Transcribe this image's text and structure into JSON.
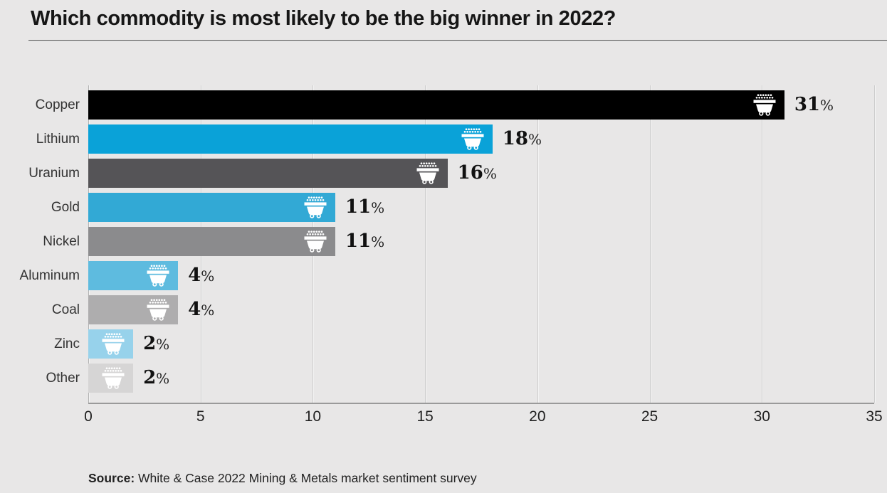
{
  "header": {
    "title": "Which commodity is most likely to be the big winner in 2022?"
  },
  "source": {
    "label": "Source:",
    "text": " White & Case 2022 Mining & Metals market sentiment survey"
  },
  "colors": {
    "background": "#e8e7e7",
    "title_text": "#161616",
    "rule": "#8f8f8f",
    "grid": "#cccccc",
    "axis": "#9a9a9a",
    "category_text": "#333333",
    "value_text": "#111111",
    "tick_text": "#1f1f1f",
    "cart_icon": "#ffffff"
  },
  "chart_data": {
    "type": "bar",
    "orientation": "horizontal",
    "title": "Which commodity is most likely to be the big winner in 2022?",
    "categories": [
      "Copper",
      "Lithium",
      "Uranium",
      "Gold",
      "Nickel",
      "Aluminum",
      "Coal",
      "Zinc",
      "Other"
    ],
    "values": [
      31,
      18,
      16,
      11,
      11,
      4,
      4,
      2,
      2
    ],
    "value_labels": [
      "31%",
      "18%",
      "16%",
      "11%",
      "11%",
      "4%",
      "4%",
      "2%",
      "2%"
    ],
    "unit": "%",
    "bar_colors": [
      "#000000",
      "#0aa2d8",
      "#555457",
      "#32a9d5",
      "#8b8b8d",
      "#5ebbdf",
      "#aeadae",
      "#97d2eb",
      "#d6d5d5"
    ],
    "bar_icon": "minecart-icon",
    "xlabel": "",
    "ylabel": "",
    "xlim": [
      0,
      35
    ],
    "xticks": [
      0,
      5,
      10,
      15,
      20,
      25,
      30,
      35
    ],
    "grid": "vertical gridlines on",
    "legend": "none",
    "source": "White & Case 2022 Mining & Metals market sentiment survey"
  }
}
